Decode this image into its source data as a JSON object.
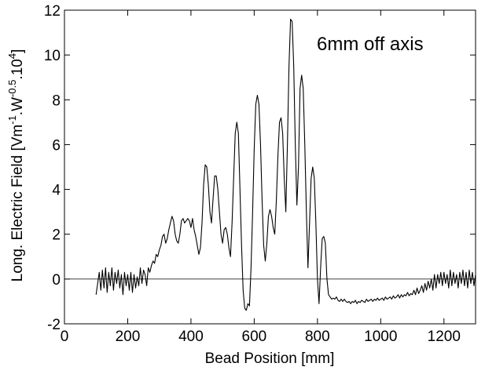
{
  "chart_data": {
    "type": "line",
    "annotation": "6mm off axis",
    "xlabel": "Bead Position [mm]",
    "ylabel_main": "Long. Electric Field [Vm",
    "ylabel_sup1": "-1",
    "ylabel_mid1": ".W",
    "ylabel_sup2": "-0.5",
    "ylabel_mid2": ".10",
    "ylabel_sup3": "4",
    "ylabel_end": "]",
    "xlim": [
      0,
      1300
    ],
    "ylim": [
      -2,
      12
    ],
    "x_ticks": [
      0,
      200,
      400,
      600,
      800,
      1000,
      1200
    ],
    "x_tick_labels": [
      "0",
      "200",
      "400",
      "600",
      "800",
      "1000",
      "1200"
    ],
    "y_ticks": [
      -2,
      0,
      2,
      4,
      6,
      8,
      10,
      12
    ],
    "y_tick_labels": [
      "-2",
      "0",
      "2",
      "4",
      "6",
      "8",
      "10",
      "12"
    ],
    "reference_line_y": 0,
    "grid": false,
    "series": [
      {
        "color": "#000000",
        "points": [
          [
            100,
            -0.7
          ],
          [
            105,
            -0.2
          ],
          [
            110,
            0.3
          ],
          [
            115,
            -0.5
          ],
          [
            120,
            0.4
          ],
          [
            125,
            -0.4
          ],
          [
            130,
            0.5
          ],
          [
            135,
            -0.6
          ],
          [
            140,
            0.3
          ],
          [
            145,
            -0.3
          ],
          [
            150,
            0.5
          ],
          [
            155,
            -0.5
          ],
          [
            160,
            0.3
          ],
          [
            165,
            -0.2
          ],
          [
            170,
            0.4
          ],
          [
            175,
            -0.4
          ],
          [
            180,
            0.2
          ],
          [
            185,
            -0.7
          ],
          [
            190,
            0.3
          ],
          [
            195,
            -0.3
          ],
          [
            200,
            0.2
          ],
          [
            205,
            -0.5
          ],
          [
            210,
            0.3
          ],
          [
            215,
            -0.6
          ],
          [
            220,
            0.2
          ],
          [
            225,
            -0.4
          ],
          [
            230,
            0.1
          ],
          [
            235,
            -0.3
          ],
          [
            240,
            0.5
          ],
          [
            245,
            -0.2
          ],
          [
            250,
            0.4
          ],
          [
            255,
            0.2
          ],
          [
            260,
            -0.3
          ],
          [
            265,
            0.5
          ],
          [
            270,
            0.3
          ],
          [
            275,
            0.6
          ],
          [
            280,
            0.8
          ],
          [
            285,
            0.7
          ],
          [
            290,
            1.1
          ],
          [
            295,
            1.0
          ],
          [
            300,
            1.3
          ],
          [
            305,
            1.5
          ],
          [
            310,
            1.9
          ],
          [
            315,
            2.0
          ],
          [
            320,
            1.6
          ],
          [
            325,
            1.8
          ],
          [
            330,
            2.2
          ],
          [
            335,
            2.5
          ],
          [
            340,
            2.8
          ],
          [
            345,
            2.6
          ],
          [
            350,
            2.0
          ],
          [
            355,
            1.7
          ],
          [
            360,
            1.6
          ],
          [
            365,
            2.0
          ],
          [
            370,
            2.6
          ],
          [
            375,
            2.7
          ],
          [
            380,
            2.5
          ],
          [
            385,
            2.6
          ],
          [
            390,
            2.7
          ],
          [
            395,
            2.6
          ],
          [
            400,
            2.3
          ],
          [
            405,
            2.7
          ],
          [
            410,
            2.2
          ],
          [
            415,
            1.9
          ],
          [
            420,
            1.5
          ],
          [
            425,
            1.1
          ],
          [
            430,
            1.4
          ],
          [
            435,
            2.5
          ],
          [
            440,
            4.2
          ],
          [
            445,
            5.1
          ],
          [
            450,
            5.0
          ],
          [
            455,
            4.2
          ],
          [
            460,
            3.0
          ],
          [
            465,
            2.5
          ],
          [
            470,
            3.6
          ],
          [
            475,
            4.6
          ],
          [
            480,
            4.6
          ],
          [
            485,
            4.0
          ],
          [
            490,
            3.0
          ],
          [
            495,
            2.0
          ],
          [
            500,
            1.6
          ],
          [
            505,
            2.2
          ],
          [
            510,
            2.3
          ],
          [
            515,
            2.0
          ],
          [
            520,
            1.4
          ],
          [
            525,
            1.0
          ],
          [
            530,
            2.5
          ],
          [
            535,
            4.5
          ],
          [
            540,
            6.5
          ],
          [
            545,
            7.0
          ],
          [
            550,
            6.5
          ],
          [
            555,
            4.0
          ],
          [
            560,
            1.5
          ],
          [
            565,
            -0.5
          ],
          [
            570,
            -1.3
          ],
          [
            575,
            -1.4
          ],
          [
            580,
            -1.1
          ],
          [
            585,
            -1.2
          ],
          [
            590,
            0.5
          ],
          [
            595,
            3.0
          ],
          [
            600,
            5.8
          ],
          [
            605,
            7.8
          ],
          [
            610,
            8.2
          ],
          [
            615,
            7.8
          ],
          [
            620,
            6.0
          ],
          [
            625,
            3.5
          ],
          [
            630,
            1.5
          ],
          [
            635,
            0.8
          ],
          [
            640,
            1.6
          ],
          [
            645,
            2.8
          ],
          [
            650,
            3.1
          ],
          [
            655,
            2.8
          ],
          [
            660,
            2.3
          ],
          [
            665,
            2.0
          ],
          [
            670,
            3.5
          ],
          [
            675,
            5.5
          ],
          [
            680,
            7.0
          ],
          [
            685,
            7.2
          ],
          [
            690,
            6.5
          ],
          [
            695,
            4.5
          ],
          [
            700,
            3.0
          ],
          [
            705,
            6.0
          ],
          [
            710,
            9.5
          ],
          [
            715,
            11.6
          ],
          [
            720,
            11.5
          ],
          [
            725,
            9.5
          ],
          [
            730,
            6.0
          ],
          [
            735,
            3.3
          ],
          [
            740,
            5.0
          ],
          [
            745,
            8.5
          ],
          [
            750,
            9.1
          ],
          [
            755,
            8.5
          ],
          [
            760,
            6.0
          ],
          [
            765,
            3.0
          ],
          [
            770,
            0.5
          ],
          [
            775,
            2.5
          ],
          [
            780,
            4.5
          ],
          [
            785,
            5.0
          ],
          [
            790,
            4.5
          ],
          [
            795,
            2.5
          ],
          [
            800,
            0.0
          ],
          [
            805,
            -1.1
          ],
          [
            810,
            0.5
          ],
          [
            815,
            1.8
          ],
          [
            820,
            1.9
          ],
          [
            825,
            1.6
          ],
          [
            830,
            0.0
          ],
          [
            835,
            -0.7
          ],
          [
            840,
            -0.8
          ],
          [
            845,
            -0.9
          ],
          [
            850,
            -0.85
          ],
          [
            855,
            -0.9
          ],
          [
            860,
            -0.8
          ],
          [
            865,
            -0.95
          ],
          [
            870,
            -1.0
          ],
          [
            875,
            -0.9
          ],
          [
            880,
            -1.0
          ],
          [
            885,
            -0.9
          ],
          [
            890,
            -1.0
          ],
          [
            895,
            -1.05
          ],
          [
            900,
            -1.0
          ],
          [
            905,
            -1.1
          ],
          [
            910,
            -1.0
          ],
          [
            915,
            -1.05
          ],
          [
            920,
            -0.95
          ],
          [
            925,
            -1.1
          ],
          [
            930,
            -1.0
          ],
          [
            935,
            -1.05
          ],
          [
            940,
            -0.95
          ],
          [
            945,
            -1.0
          ],
          [
            950,
            -1.05
          ],
          [
            955,
            -0.9
          ],
          [
            960,
            -1.0
          ],
          [
            965,
            -0.95
          ],
          [
            970,
            -0.9
          ],
          [
            975,
            -1.0
          ],
          [
            980,
            -0.9
          ],
          [
            985,
            -0.95
          ],
          [
            990,
            -0.85
          ],
          [
            995,
            -0.95
          ],
          [
            1000,
            -0.9
          ],
          [
            1005,
            -0.85
          ],
          [
            1010,
            -0.95
          ],
          [
            1015,
            -0.8
          ],
          [
            1020,
            -0.9
          ],
          [
            1025,
            -0.85
          ],
          [
            1030,
            -0.8
          ],
          [
            1035,
            -0.9
          ],
          [
            1040,
            -0.75
          ],
          [
            1045,
            -0.85
          ],
          [
            1050,
            -0.8
          ],
          [
            1055,
            -0.7
          ],
          [
            1060,
            -0.85
          ],
          [
            1065,
            -0.7
          ],
          [
            1070,
            -0.8
          ],
          [
            1075,
            -0.7
          ],
          [
            1080,
            -0.75
          ],
          [
            1085,
            -0.6
          ],
          [
            1090,
            -0.75
          ],
          [
            1095,
            -0.65
          ],
          [
            1100,
            -0.7
          ],
          [
            1105,
            -0.5
          ],
          [
            1110,
            -0.7
          ],
          [
            1115,
            -0.4
          ],
          [
            1120,
            -0.65
          ],
          [
            1125,
            -0.5
          ],
          [
            1130,
            -0.3
          ],
          [
            1135,
            -0.6
          ],
          [
            1140,
            -0.2
          ],
          [
            1145,
            -0.5
          ],
          [
            1150,
            -0.1
          ],
          [
            1155,
            -0.4
          ],
          [
            1160,
            0.0
          ],
          [
            1165,
            -0.5
          ],
          [
            1170,
            0.2
          ],
          [
            1175,
            -0.4
          ],
          [
            1180,
            0.2
          ],
          [
            1185,
            -0.2
          ],
          [
            1190,
            0.3
          ],
          [
            1195,
            -0.3
          ],
          [
            1200,
            0.3
          ],
          [
            1205,
            -0.2
          ],
          [
            1210,
            0.2
          ],
          [
            1215,
            -0.4
          ],
          [
            1220,
            0.4
          ],
          [
            1225,
            -0.3
          ],
          [
            1230,
            0.3
          ],
          [
            1235,
            -0.2
          ],
          [
            1240,
            0.2
          ],
          [
            1245,
            -0.4
          ],
          [
            1250,
            0.3
          ],
          [
            1255,
            -0.2
          ],
          [
            1260,
            0.4
          ],
          [
            1265,
            -0.3
          ],
          [
            1270,
            0.3
          ],
          [
            1275,
            -0.4
          ],
          [
            1280,
            0.4
          ],
          [
            1285,
            -0.2
          ],
          [
            1290,
            0.3
          ],
          [
            1295,
            -0.3
          ],
          [
            1300,
            0.2
          ]
        ]
      }
    ]
  }
}
